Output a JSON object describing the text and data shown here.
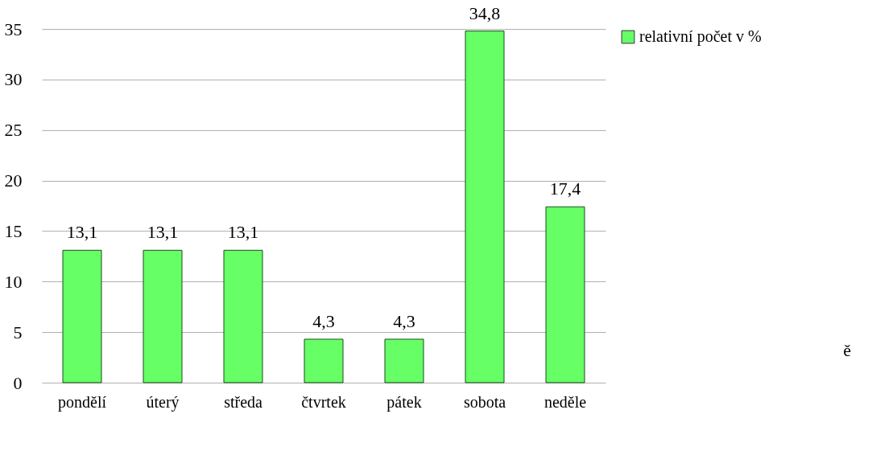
{
  "chart_data": {
    "type": "bar",
    "categories": [
      "pondělí",
      "úterý",
      "středa",
      "čtvrtek",
      "pátek",
      "sobota",
      "neděle"
    ],
    "series": [
      {
        "name": "relativní počet v %",
        "color": "#66ff66",
        "values": [
          13.1,
          13.1,
          13.1,
          4.3,
          4.3,
          34.8,
          17.4
        ],
        "value_labels": [
          "13,1",
          "13,1",
          "13,1",
          "4,3",
          "4,3",
          "34,8",
          "17,4"
        ]
      }
    ],
    "ylim": [
      0,
      35
    ],
    "yticks": [
      0,
      5,
      10,
      15,
      20,
      25,
      30,
      35
    ],
    "grid": "y",
    "legend": "right",
    "annotations": [
      "ě"
    ]
  }
}
